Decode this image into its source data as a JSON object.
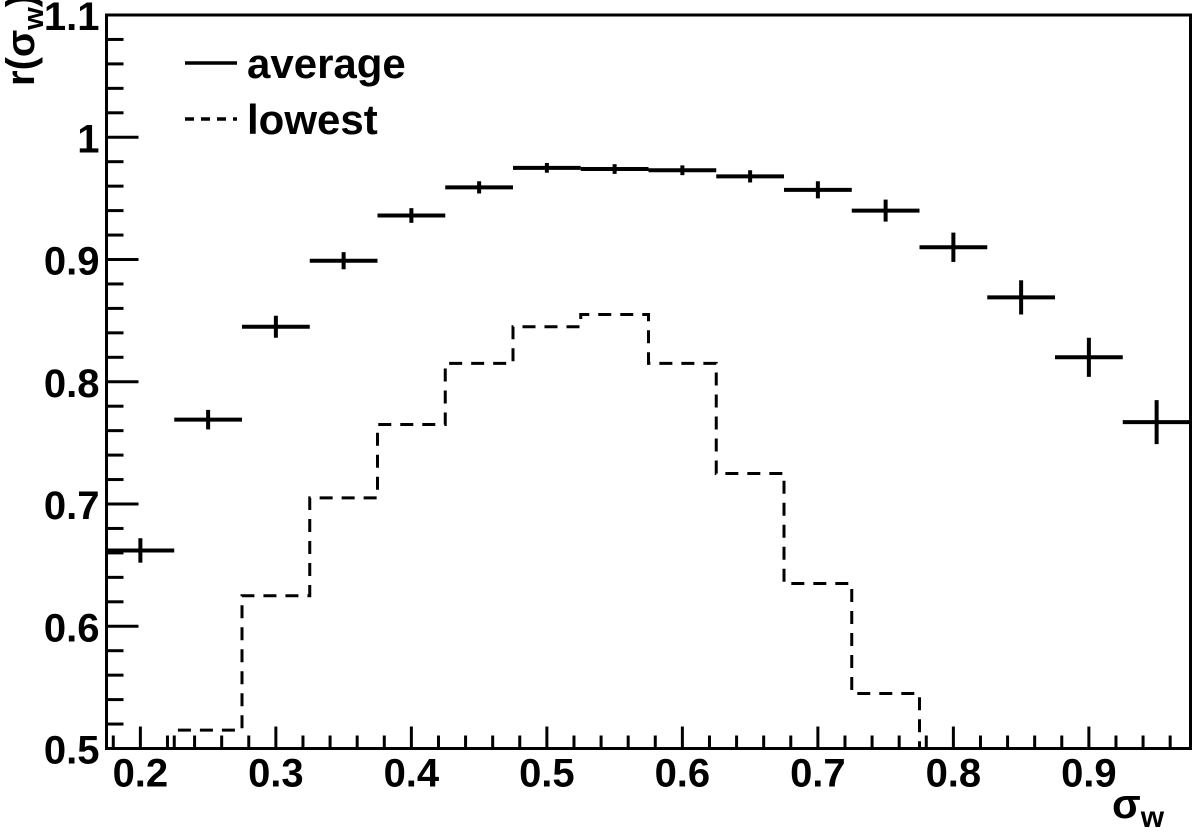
{
  "figure": {
    "background": "#ffffff",
    "foreground": "#000000"
  },
  "chart_data": {
    "type": "scatter+step-histogram",
    "title": "",
    "xlabel": {
      "symbol": "σ",
      "subscript": "w"
    },
    "ylabel": {
      "prefix": "r(",
      "symbol": "σ",
      "subscript": "w",
      "suffix": ")"
    },
    "xlim": [
      0.175,
      0.975
    ],
    "ylim": [
      0.5,
      1.1
    ],
    "grid": false,
    "x_axis": {
      "major_ticks": [
        0.2,
        0.3,
        0.4,
        0.5,
        0.6,
        0.7,
        0.8,
        0.9
      ],
      "tick_labels": [
        "0.2",
        "0.3",
        "0.4",
        "0.5",
        "0.6",
        "0.7",
        "0.8",
        "0.9"
      ],
      "minor_step": 0.02
    },
    "y_axis": {
      "major_ticks": [
        0.5,
        0.6,
        0.7,
        0.8,
        0.9,
        1.0,
        1.1
      ],
      "tick_labels": [
        "0.5",
        "0.6",
        "0.7",
        "0.8",
        "0.9",
        "1",
        "1.1"
      ],
      "minor_step": 0.02
    },
    "legend": {
      "position": "top-left",
      "entries": [
        {
          "label": "average",
          "line": "solid"
        },
        {
          "label": "lowest",
          "line": "dashed"
        }
      ]
    },
    "series": [
      {
        "name": "average",
        "style": "errorbar-cross",
        "line": "solid",
        "x": [
          0.2,
          0.25,
          0.3,
          0.35,
          0.4,
          0.45,
          0.5,
          0.55,
          0.6,
          0.65,
          0.7,
          0.75,
          0.8,
          0.85,
          0.9,
          0.95
        ],
        "y": [
          0.662,
          0.769,
          0.845,
          0.899,
          0.936,
          0.959,
          0.975,
          0.974,
          0.973,
          0.968,
          0.957,
          0.94,
          0.91,
          0.869,
          0.82,
          0.767
        ],
        "yerr": [
          0.01,
          0.008,
          0.009,
          0.007,
          0.006,
          0.005,
          0.004,
          0.004,
          0.004,
          0.005,
          0.007,
          0.009,
          0.012,
          0.014,
          0.016,
          0.018
        ],
        "xerr": 0.025
      },
      {
        "name": "lowest",
        "style": "step-histogram",
        "line": "dashed",
        "bin_edges": [
          0.225,
          0.275,
          0.325,
          0.375,
          0.425,
          0.475,
          0.525,
          0.575,
          0.625,
          0.675,
          0.725,
          0.775
        ],
        "values": [
          0.515,
          0.625,
          0.705,
          0.765,
          0.815,
          0.845,
          0.855,
          0.815,
          0.725,
          0.635,
          0.545
        ],
        "starts_at_baseline": true,
        "ends_at_baseline": true
      }
    ]
  }
}
